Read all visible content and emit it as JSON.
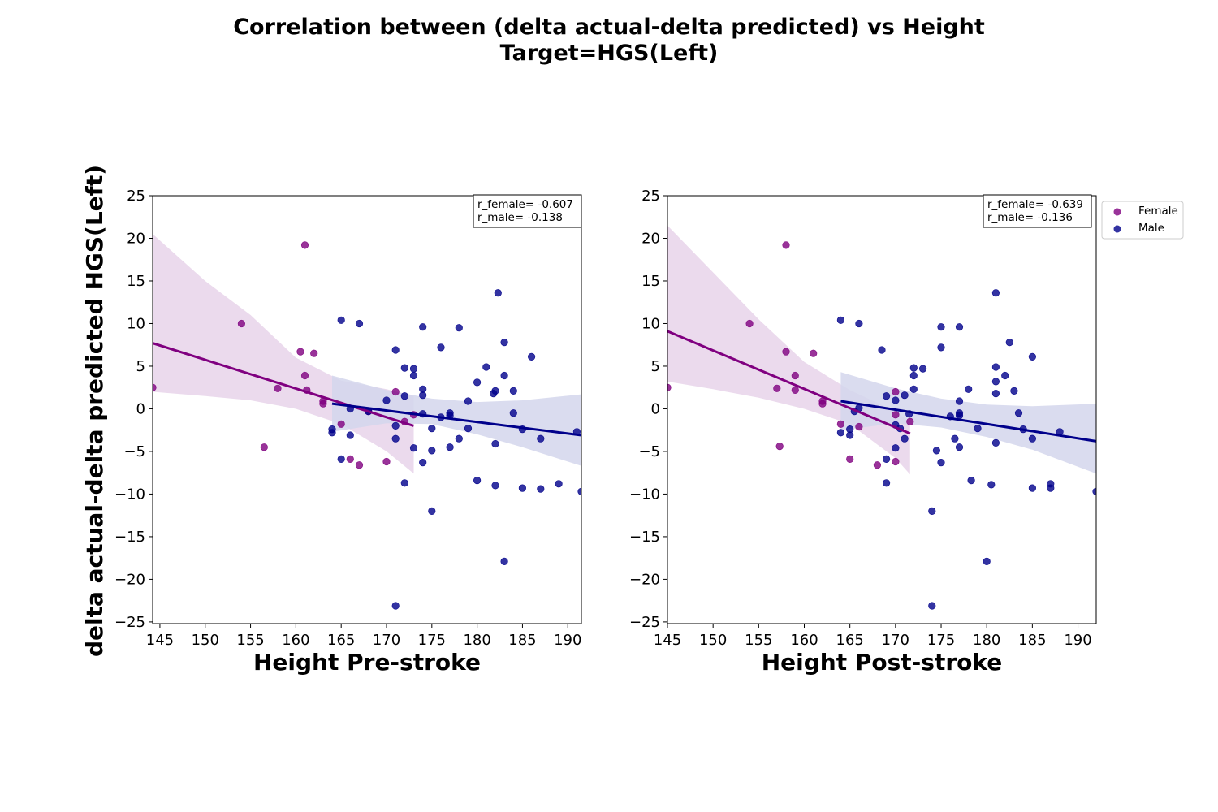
{
  "figure": {
    "title_line1": "Correlation between (delta actual-delta predicted) vs Height",
    "title_line2": "Target=HGS(Left)",
    "ylabel": "delta actual-delta predicted HGS(Left)"
  },
  "colors": {
    "female": "#800080",
    "female_band": "#e8d3ea",
    "male": "#00008b",
    "male_band": "#d3d6ec"
  },
  "legend": {
    "items": [
      "Female",
      "Male"
    ],
    "placement": "outside-right-top"
  },
  "chart_data": [
    {
      "type": "scatter",
      "xlabel": "Height Pre-stroke",
      "ylabel": "delta actual-delta predicted HGS(Left)",
      "xlim": [
        144.2,
        191.5
      ],
      "ylim": [
        -25.2,
        25
      ],
      "xticks": [
        145,
        150,
        155,
        160,
        165,
        170,
        175,
        180,
        185,
        190
      ],
      "yticks": [
        25,
        20,
        15,
        10,
        5,
        0,
        -5,
        -10,
        -15,
        -20,
        -25
      ],
      "annotation": [
        "r_female= -0.607",
        "r_male= -0.138"
      ],
      "series": [
        {
          "name": "Female",
          "points": [
            [
              144.2,
              2.5
            ],
            [
              154,
              10
            ],
            [
              158,
              2.4
            ],
            [
              160.5,
              6.7
            ],
            [
              161,
              3.9
            ],
            [
              161,
              19.2
            ],
            [
              161.2,
              2.2
            ],
            [
              162,
              6.5
            ],
            [
              163,
              0.6
            ],
            [
              163,
              0.9
            ],
            [
              165,
              -1.8
            ],
            [
              166,
              -5.9
            ],
            [
              167,
              -6.6
            ],
            [
              168,
              -0.3
            ],
            [
              170,
              -6.2
            ],
            [
              171,
              2
            ],
            [
              172,
              -1.5
            ],
            [
              173,
              -0.7
            ],
            [
              156.5,
              -4.5
            ]
          ],
          "fit": {
            "x_range": [
              144.2,
              173
            ],
            "y_range": [
              7.7,
              -2.0
            ]
          },
          "band": {
            "x": [
              144.2,
              150,
              155,
              160,
              165,
              170,
              173
            ],
            "upper": [
              20.5,
              15,
              11,
              6,
              3.3,
              2.3,
              1.5
            ],
            "lower": [
              2,
              1.5,
              1,
              0,
              -1.8,
              -5,
              -7.6
            ]
          }
        },
        {
          "name": "Male",
          "points": [
            [
              164,
              -2.4
            ],
            [
              164,
              -2.8
            ],
            [
              165,
              10.4
            ],
            [
              165,
              -5.9
            ],
            [
              166,
              0
            ],
            [
              166,
              -3.1
            ],
            [
              167,
              10
            ],
            [
              168,
              -0.3
            ],
            [
              170,
              1
            ],
            [
              171,
              6.9
            ],
            [
              171,
              -2
            ],
            [
              171,
              -3.5
            ],
            [
              171,
              -23.1
            ],
            [
              172,
              4.8
            ],
            [
              172,
              1.5
            ],
            [
              172,
              -8.7
            ],
            [
              173,
              4.7
            ],
            [
              173,
              3.9
            ],
            [
              173,
              -4.6
            ],
            [
              174,
              9.6
            ],
            [
              174,
              2.3
            ],
            [
              174,
              1.6
            ],
            [
              174,
              -0.6
            ],
            [
              174,
              -6.3
            ],
            [
              175,
              -2.3
            ],
            [
              175,
              -4.9
            ],
            [
              175,
              -12
            ],
            [
              176,
              7.2
            ],
            [
              176,
              -1
            ],
            [
              177,
              -0.5
            ],
            [
              177,
              -0.8
            ],
            [
              177,
              -4.5
            ],
            [
              178,
              9.5
            ],
            [
              178,
              -3.5
            ],
            [
              179,
              0.9
            ],
            [
              179,
              -2.3
            ],
            [
              180,
              3.1
            ],
            [
              180,
              -8.4
            ],
            [
              181,
              4.9
            ],
            [
              181.8,
              1.8
            ],
            [
              182,
              2.1
            ],
            [
              182.3,
              13.6
            ],
            [
              182,
              -4.1
            ],
            [
              182,
              -9
            ],
            [
              183,
              7.8
            ],
            [
              183,
              3.9
            ],
            [
              183,
              -17.9
            ],
            [
              184,
              2.1
            ],
            [
              184,
              -0.5
            ],
            [
              185,
              -2.4
            ],
            [
              185,
              -9.3
            ],
            [
              186,
              6.1
            ],
            [
              187,
              -3.5
            ],
            [
              187,
              -9.4
            ],
            [
              189,
              -8.8
            ],
            [
              191,
              -2.7
            ],
            [
              191.5,
              -9.7
            ]
          ],
          "fit": {
            "x_range": [
              164,
              191.5
            ],
            "y_range": [
              0.6,
              -3.1
            ]
          },
          "band": {
            "x": [
              164,
              170,
              175,
              180,
              185,
              191.5
            ],
            "upper": [
              3.9,
              2.2,
              1.2,
              0.8,
              1,
              1.7
            ],
            "lower": [
              -2.7,
              -1.7,
              -1.8,
              -3,
              -4.5,
              -6.7
            ]
          }
        }
      ]
    },
    {
      "type": "scatter",
      "xlabel": "Height Post-stroke",
      "ylabel": "",
      "xlim": [
        145,
        192
      ],
      "ylim": [
        -25.2,
        25
      ],
      "xticks": [
        145,
        150,
        155,
        160,
        165,
        170,
        175,
        180,
        185,
        190
      ],
      "yticks": [
        25,
        20,
        15,
        10,
        5,
        0,
        -5,
        -10,
        -15,
        -20,
        -25
      ],
      "annotation": [
        "r_female= -0.639",
        "r_male= -0.136"
      ],
      "series": [
        {
          "name": "Female",
          "points": [
            [
              145,
              2.5
            ],
            [
              154,
              10
            ],
            [
              157,
              2.4
            ],
            [
              157.3,
              -4.4
            ],
            [
              158,
              6.7
            ],
            [
              158,
              19.2
            ],
            [
              159,
              3.9
            ],
            [
              159,
              2.2
            ],
            [
              161,
              6.5
            ],
            [
              162,
              0.6
            ],
            [
              162,
              0.9
            ],
            [
              164,
              -1.8
            ],
            [
              165,
              -5.9
            ],
            [
              166,
              -2.1
            ],
            [
              168,
              -6.6
            ],
            [
              170,
              2
            ],
            [
              170,
              -0.7
            ],
            [
              170,
              -6.2
            ],
            [
              171.6,
              -1.5
            ]
          ],
          "fit": {
            "x_range": [
              145,
              171.6
            ],
            "y_range": [
              9.1,
              -2.9
            ]
          },
          "band": {
            "x": [
              145,
              150,
              155,
              160,
              165,
              170,
              171.6
            ],
            "upper": [
              21.5,
              16,
              10.5,
              5.5,
              2.2,
              -0.3,
              -1.6
            ],
            "lower": [
              3.2,
              2.3,
              1.3,
              0,
              -1.8,
              -5.8,
              -7.7
            ]
          }
        },
        {
          "name": "Male",
          "points": [
            [
              164,
              10.4
            ],
            [
              164,
              -2.8
            ],
            [
              165,
              -2.4
            ],
            [
              165,
              -3.1
            ],
            [
              165.5,
              -0.3
            ],
            [
              166,
              10
            ],
            [
              166,
              0.1
            ],
            [
              168.5,
              6.9
            ],
            [
              169,
              1.5
            ],
            [
              169,
              -5.9
            ],
            [
              169,
              -8.7
            ],
            [
              170,
              1
            ],
            [
              170,
              -1.9
            ],
            [
              170,
              -4.6
            ],
            [
              170.5,
              -2.3
            ],
            [
              171,
              1.6
            ],
            [
              171,
              -3.5
            ],
            [
              171.5,
              -0.6
            ],
            [
              172,
              4.8
            ],
            [
              172,
              3.9
            ],
            [
              172,
              2.3
            ],
            [
              173,
              4.7
            ],
            [
              174,
              -12
            ],
            [
              174,
              -23.1
            ],
            [
              174.5,
              -4.9
            ],
            [
              175,
              9.6
            ],
            [
              175,
              7.2
            ],
            [
              175,
              -6.3
            ],
            [
              176,
              -0.9
            ],
            [
              176.5,
              -3.5
            ],
            [
              177,
              9.6
            ],
            [
              177,
              0.9
            ],
            [
              177,
              -0.5
            ],
            [
              177,
              -0.8
            ],
            [
              177,
              -4.5
            ],
            [
              178,
              2.3
            ],
            [
              178.3,
              -8.4
            ],
            [
              179,
              -2.3
            ],
            [
              180,
              -17.9
            ],
            [
              180.5,
              -8.9
            ],
            [
              181,
              13.6
            ],
            [
              181,
              4.9
            ],
            [
              181,
              3.2
            ],
            [
              181,
              1.8
            ],
            [
              181,
              -4
            ],
            [
              182,
              3.9
            ],
            [
              182.5,
              7.8
            ],
            [
              183,
              2.1
            ],
            [
              183.5,
              -0.5
            ],
            [
              184,
              -2.4
            ],
            [
              185,
              6.1
            ],
            [
              185,
              -3.5
            ],
            [
              185,
              -9.3
            ],
            [
              187,
              -8.8
            ],
            [
              187,
              -9.3
            ],
            [
              188,
              -2.7
            ],
            [
              192,
              -9.7
            ]
          ],
          "fit": {
            "x_range": [
              164,
              192
            ],
            "y_range": [
              0.9,
              -3.8
            ]
          },
          "band": {
            "x": [
              164,
              170,
              175,
              180,
              185,
              192
            ],
            "upper": [
              4.3,
              2.4,
              1.2,
              0.5,
              0.3,
              0.6
            ],
            "lower": [
              -2.5,
              -1.7,
              -2.2,
              -3.3,
              -4.8,
              -7.6
            ]
          }
        }
      ]
    }
  ]
}
